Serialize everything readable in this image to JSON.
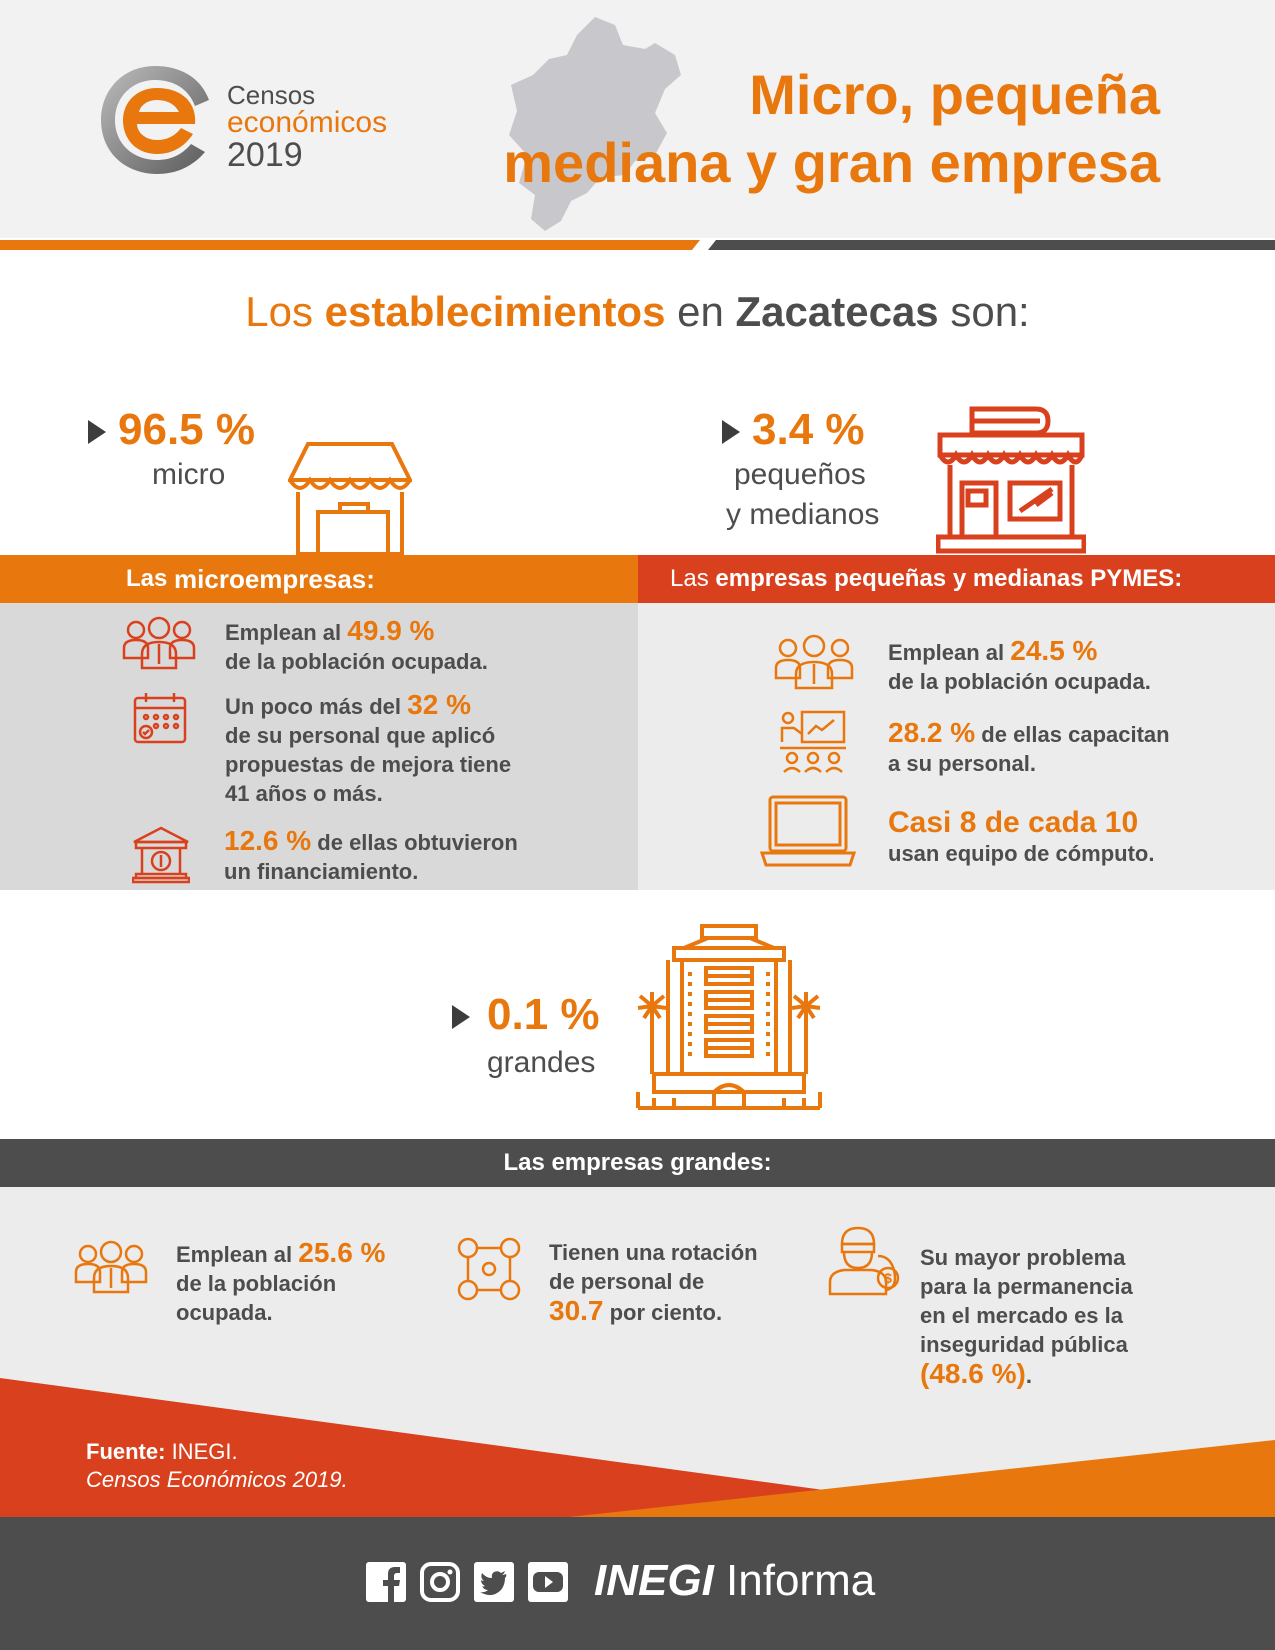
{
  "header": {
    "logo": {
      "line1": "Censos",
      "line2": "económicos",
      "line3": "2019"
    },
    "title_line1": "Micro, pequeña",
    "title_line2": "mediana y gran empresa",
    "map_icon": "zacatecas-map-silhouette"
  },
  "subtitle": {
    "part1": "Los ",
    "part2": "establecimientos",
    "part3": " en ",
    "part4": "Zacatecas",
    "part5": " son:"
  },
  "micro": {
    "percent": "96.5 %",
    "label": "micro",
    "icon": "market-stall-icon"
  },
  "pymes": {
    "percent": "3.4 %",
    "label_line1": "pequeños",
    "label_line2": "y medianos",
    "icon": "storefront-icon"
  },
  "micro_panel": {
    "bar_prefix": "Las ",
    "bar_bold": "microempresas:",
    "items": [
      {
        "icon": "people-group-icon",
        "pre": "Emplean al ",
        "value": "49.9 %",
        "line2": "de la población ocupada."
      },
      {
        "icon": "calendar-check-icon",
        "pre": "Un poco más del ",
        "value": "32 %",
        "line2": "de su personal que aplicó",
        "line3": "propuestas de mejora tiene",
        "line4": "41 años o más."
      },
      {
        "icon": "bank-icon",
        "value": "12.6 %",
        "post": " de ellas obtuvieron",
        "line2": "un financiamiento."
      }
    ]
  },
  "pymes_panel": {
    "bar_prefix": "Las ",
    "bar_bold": "empresas pequeñas y medianas PYMES:",
    "items": [
      {
        "icon": "people-group-icon",
        "pre": "Emplean al ",
        "value": "24.5 %",
        "line2": "de la población ocupada."
      },
      {
        "icon": "training-presentation-icon",
        "value": "28.2 %",
        "post": " de ellas capacitan",
        "line2": "a su personal."
      },
      {
        "icon": "laptop-icon",
        "value": "Casi 8 de cada 10",
        "line2": "usan equipo de cómputo."
      }
    ]
  },
  "grandes": {
    "percent": "0.1 %",
    "label": "grandes",
    "icon": "tall-building-icon"
  },
  "grandes_panel": {
    "bar": "Las empresas grandes:",
    "items": [
      {
        "icon": "people-group-icon",
        "pre": "Emplean al ",
        "value": "25.6 %",
        "line2": "de la población",
        "line3": "ocupada."
      },
      {
        "icon": "staff-rotation-icon",
        "line1": "Tienen una rotación",
        "line2": "de personal de",
        "value": "30.7",
        "post": " por ciento."
      },
      {
        "icon": "thief-icon",
        "line1": "Su mayor problema",
        "line2": "para la permanencia",
        "line3": "en el mercado es la",
        "line4": "inseguridad pública",
        "value": "(48.6 %)",
        "post": "."
      }
    ]
  },
  "source": {
    "label": "Fuente:",
    "org": " INEGI.",
    "doc": "Censos Económicos 2019."
  },
  "footer": {
    "social_icons": [
      "facebook-icon",
      "instagram-icon",
      "twitter-icon",
      "youtube-icon"
    ],
    "brand_bold": "INEGI",
    "brand_light": " Informa"
  },
  "colors": {
    "orange": "#e8770e",
    "red": "#d9401d",
    "dark_gray": "#4d4d4d",
    "light_gray": "#e8e8e8"
  }
}
